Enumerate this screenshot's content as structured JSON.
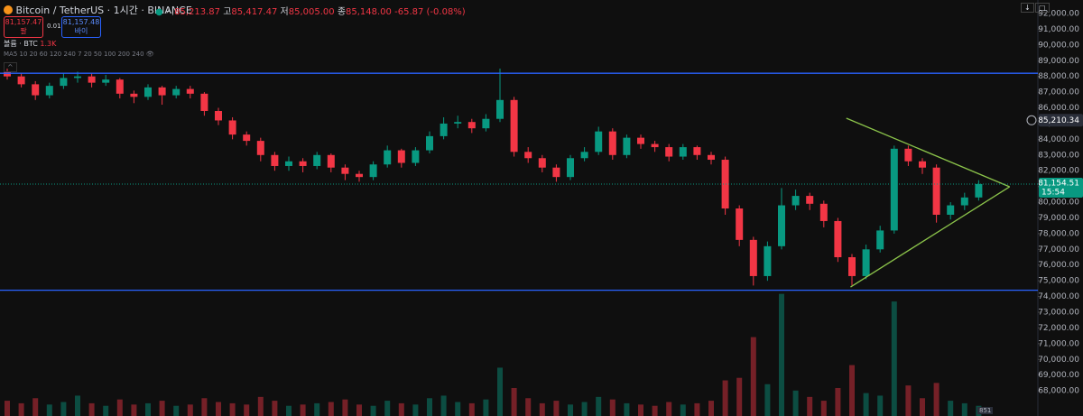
{
  "header": {
    "symbol": "Bitcoin / TetherUS · 1시간 · BINANCE",
    "ohlc": [
      {
        "label": "시",
        "value": "85,213.87"
      },
      {
        "label": "고",
        "value": "85,417.47"
      },
      {
        "label": "저",
        "value": "85,005.00"
      },
      {
        "label": "종",
        "value": "85,148.00"
      }
    ],
    "change": "-65.87 (-0.08%)",
    "sell": {
      "price": "81,157.47",
      "label": "팔"
    },
    "spread": "0.01",
    "buy": {
      "price": "81,157.48",
      "label": "바이"
    },
    "volume_label": "볼륨 · BTC",
    "volume_value": "1.3K",
    "ma_label": "MA5 10 20 60 120 240 7 20 50 100 200 240",
    "footer_badge": "851"
  },
  "chart_data": {
    "type": "candlestick",
    "up_color": "#089981",
    "down_color": "#f23645",
    "open": [
      88300,
      88000,
      87500,
      86800,
      87400,
      87900,
      88000,
      87600,
      87800,
      86900,
      86700,
      87300,
      86800,
      87200,
      86900,
      85800,
      85200,
      84300,
      83900,
      83000,
      82300,
      82600,
      82300,
      83000,
      82200,
      81800,
      81600,
      82400,
      83300,
      82500,
      83300,
      84200,
      85000,
      85100,
      84700,
      85300,
      86500,
      83200,
      82800,
      82200,
      81600,
      82800,
      83200,
      84500,
      83000,
      84100,
      83700,
      83500,
      82900,
      83500,
      83000,
      82700,
      79600,
      77600,
      75300,
      77200,
      79800,
      80400,
      79900,
      78800,
      76500,
      75300,
      77000,
      78200,
      83400,
      82600,
      82200,
      79200,
      79800,
      80300
    ],
    "high": [
      88500,
      88200,
      87700,
      87600,
      88200,
      88300,
      88200,
      88100,
      87900,
      87100,
      87500,
      87400,
      87400,
      87400,
      87000,
      86000,
      85400,
      84500,
      84100,
      83200,
      82900,
      82800,
      83200,
      83100,
      82400,
      82000,
      82600,
      83600,
      83400,
      83500,
      84500,
      85400,
      85500,
      85300,
      85600,
      88500,
      86700,
      83500,
      83000,
      82400,
      83000,
      83500,
      84800,
      84700,
      84300,
      84300,
      83900,
      83700,
      83700,
      83600,
      83200,
      82900,
      79800,
      77800,
      77500,
      80900,
      80800,
      80600,
      80100,
      79000,
      76700,
      77300,
      78500,
      83600,
      83600,
      82800,
      82400,
      80000,
      80600,
      81400
    ],
    "low": [
      87800,
      87300,
      86500,
      86600,
      87200,
      87600,
      87300,
      87400,
      86600,
      86300,
      86500,
      86200,
      86600,
      86600,
      85500,
      84900,
      84000,
      83600,
      82600,
      82000,
      82000,
      81900,
      82100,
      81900,
      81400,
      81300,
      81400,
      82200,
      82200,
      82300,
      83100,
      84000,
      84700,
      84400,
      84500,
      85100,
      82900,
      82500,
      81900,
      81300,
      81400,
      82600,
      83000,
      82700,
      82800,
      83400,
      83200,
      82600,
      82700,
      82700,
      82400,
      79200,
      77200,
      74700,
      75000,
      77000,
      79500,
      79500,
      78400,
      76200,
      74700,
      75100,
      76800,
      78000,
      82300,
      81800,
      78700,
      78900,
      79500,
      80100
    ],
    "close": [
      88000,
      87500,
      86800,
      87400,
      87900,
      88000,
      87600,
      87800,
      86900,
      86700,
      87300,
      86800,
      87200,
      86900,
      85800,
      85200,
      84300,
      83900,
      83000,
      82300,
      82600,
      82300,
      83000,
      82200,
      81800,
      81600,
      82400,
      83300,
      82500,
      83300,
      84200,
      85000,
      85100,
      84700,
      85300,
      86500,
      83200,
      82800,
      82200,
      81600,
      82800,
      83200,
      84500,
      83000,
      84100,
      83700,
      83500,
      82900,
      83500,
      83000,
      82700,
      79600,
      77600,
      75300,
      77200,
      79800,
      80400,
      79900,
      78800,
      76500,
      75300,
      77000,
      78200,
      83400,
      82600,
      82200,
      79200,
      79800,
      80300,
      81154.51
    ],
    "volume": [
      12,
      10,
      14,
      9,
      11,
      16,
      10,
      8,
      13,
      9,
      10,
      12,
      8,
      9,
      14,
      11,
      10,
      9,
      15,
      12,
      8,
      9,
      10,
      11,
      13,
      9,
      8,
      12,
      10,
      9,
      14,
      16,
      11,
      10,
      13,
      38,
      22,
      14,
      10,
      12,
      9,
      11,
      15,
      13,
      10,
      9,
      8,
      11,
      9,
      10,
      12,
      28,
      30,
      62,
      25,
      96,
      20,
      15,
      12,
      22,
      40,
      18,
      16,
      90,
      24,
      14,
      26,
      12,
      10,
      8
    ],
    "y2lim": [
      0,
      100
    ],
    "ylim": [
      66400,
      92860
    ],
    "yticks": [
      {
        "value": 68000,
        "label": "68,000.00"
      },
      {
        "value": 69000,
        "label": "69,000.00"
      },
      {
        "value": 70000,
        "label": "70,000.00"
      },
      {
        "value": 71000,
        "label": "71,000.00"
      },
      {
        "value": 72000,
        "label": "72,000.00"
      },
      {
        "value": 73000,
        "label": "73,000.00"
      },
      {
        "value": 74000,
        "label": "74,000.00"
      },
      {
        "value": 75000,
        "label": "75,000.00"
      },
      {
        "value": 76000,
        "label": "76,000.00"
      },
      {
        "value": 77000,
        "label": "77,000.00"
      },
      {
        "value": 78000,
        "label": "78,000.00"
      },
      {
        "value": 79000,
        "label": "79,000.00"
      },
      {
        "value": 80000,
        "label": "80,000.00"
      },
      {
        "value": 81000,
        "label": "81,000.00"
      },
      {
        "value": 82000,
        "label": "82,000.00"
      },
      {
        "value": 83000,
        "label": "83,000.00"
      },
      {
        "value": 84000,
        "label": "84,000.00"
      },
      {
        "value": 85000,
        "label": "85,000.00"
      },
      {
        "value": 86000,
        "label": "86,000.00"
      },
      {
        "value": 87000,
        "label": "87,000.00"
      },
      {
        "value": 88000,
        "label": "88,000.00"
      },
      {
        "value": 89000,
        "label": "89,000.00"
      },
      {
        "value": 90000,
        "label": "90,000.00"
      },
      {
        "value": 91000,
        "label": "91,000.00"
      },
      {
        "value": 92000,
        "label": "92,000.00"
      }
    ],
    "hlines": [
      {
        "value": 88200,
        "color": "#2962ff"
      },
      {
        "value": 74400,
        "color": "#2962ff"
      }
    ],
    "trendlines": [
      {
        "x": [
          59.6,
          71.2
        ],
        "y": [
          85340,
          80980
        ],
        "color": "#8bc34a"
      },
      {
        "x": [
          59.9,
          71.2
        ],
        "y": [
          74606,
          80980
        ],
        "color": "#8bc34a"
      }
    ],
    "last_price": {
      "value": 81154.51,
      "label": "81,154.51",
      "color": "#089981"
    },
    "countdown": "15:54",
    "crosshair_price": {
      "value": 85210.34,
      "label": "85,210.34"
    }
  }
}
